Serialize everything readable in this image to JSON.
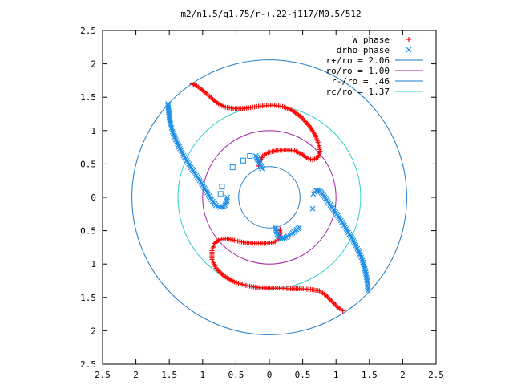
{
  "chart_data": {
    "type": "scatter",
    "title": "m2/n1.5/q1.75/r-+.22-j117/M0.5/512",
    "xlabel": "",
    "ylabel": "",
    "xlim": [
      -2.5,
      2.5
    ],
    "ylim": [
      -2.5,
      2.5
    ],
    "grid": false,
    "legend_position": "top-right",
    "x_ticks": [
      {
        "value": -2.5,
        "label": "2.5"
      },
      {
        "value": -2,
        "label": "2"
      },
      {
        "value": -1.5,
        "label": "1.5"
      },
      {
        "value": -1,
        "label": "1"
      },
      {
        "value": -0.5,
        "label": "0.5"
      },
      {
        "value": 0,
        "label": "0"
      },
      {
        "value": 0.5,
        "label": "0.5"
      },
      {
        "value": 1,
        "label": "1"
      },
      {
        "value": 1.5,
        "label": "1.5"
      },
      {
        "value": 2,
        "label": "2"
      },
      {
        "value": 2.5,
        "label": "2.5"
      }
    ],
    "y_ticks": [
      {
        "value": 2.5,
        "label": "2.5"
      },
      {
        "value": 2,
        "label": "2"
      },
      {
        "value": 1.5,
        "label": "1.5"
      },
      {
        "value": 1,
        "label": "1"
      },
      {
        "value": 0.5,
        "label": "0.5"
      },
      {
        "value": 0,
        "label": "0"
      },
      {
        "value": -0.5,
        "label": "0.5"
      },
      {
        "value": -1,
        "label": "1"
      },
      {
        "value": -1.5,
        "label": "1.5"
      },
      {
        "value": -2,
        "label": "2"
      },
      {
        "value": -2.5,
        "label": "2.5"
      }
    ],
    "circles": [
      {
        "name": "r+/ro = 2.06",
        "radius": 2.06,
        "color": "#1e7bc8"
      },
      {
        "name": "ro/ro = 1.00",
        "radius": 1.0,
        "color": "#a020a0"
      },
      {
        "name": "r-/ro = .46",
        "radius": 0.46,
        "color": "#1e7bc8"
      },
      {
        "name": "rc/ro = 1.37",
        "radius": 1.37,
        "color": "#30d0d0"
      }
    ],
    "series": [
      {
        "name": "W phase",
        "marker": "plus",
        "color": "#ff0000",
        "points": [
          [
            -1.16,
            1.7
          ],
          [
            -1.09,
            1.67
          ],
          [
            -1.02,
            1.62
          ],
          [
            -0.94,
            1.55
          ],
          [
            -0.85,
            1.47
          ],
          [
            -0.76,
            1.4
          ],
          [
            -0.66,
            1.35
          ],
          [
            -0.54,
            1.33
          ],
          [
            -0.4,
            1.33
          ],
          [
            -0.25,
            1.35
          ],
          [
            -0.1,
            1.37
          ],
          [
            0.05,
            1.38
          ],
          [
            0.2,
            1.36
          ],
          [
            0.35,
            1.3
          ],
          [
            0.48,
            1.2
          ],
          [
            0.6,
            1.07
          ],
          [
            0.69,
            0.93
          ],
          [
            0.74,
            0.8
          ],
          [
            0.76,
            0.69
          ],
          [
            0.73,
            0.6
          ],
          [
            0.65,
            0.56
          ],
          [
            0.56,
            0.59
          ],
          [
            0.48,
            0.65
          ],
          [
            0.38,
            0.7
          ],
          [
            0.25,
            0.71
          ],
          [
            0.1,
            0.7
          ],
          [
            -0.02,
            0.67
          ],
          [
            -0.1,
            0.62
          ],
          [
            -0.14,
            0.55
          ],
          [
            -0.16,
            0.47
          ],
          [
            1.1,
            -1.7
          ],
          [
            1.03,
            -1.65
          ],
          [
            0.95,
            -1.57
          ],
          [
            0.85,
            -1.47
          ],
          [
            0.75,
            -1.4
          ],
          [
            0.62,
            -1.38
          ],
          [
            0.48,
            -1.37
          ],
          [
            0.32,
            -1.37
          ],
          [
            0.15,
            -1.36
          ],
          [
            -0.02,
            -1.36
          ],
          [
            -0.18,
            -1.35
          ],
          [
            -0.35,
            -1.32
          ],
          [
            -0.52,
            -1.27
          ],
          [
            -0.68,
            -1.18
          ],
          [
            -0.8,
            -1.06
          ],
          [
            -0.86,
            -0.93
          ],
          [
            -0.86,
            -0.8
          ],
          [
            -0.82,
            -0.69
          ],
          [
            -0.74,
            -0.63
          ],
          [
            -0.63,
            -0.62
          ],
          [
            -0.5,
            -0.65
          ],
          [
            -0.36,
            -0.68
          ],
          [
            -0.22,
            -0.69
          ],
          [
            -0.08,
            -0.69
          ],
          [
            0.06,
            -0.68
          ],
          [
            0.14,
            -0.63
          ],
          [
            0.16,
            -0.55
          ],
          [
            0.16,
            -0.48
          ]
        ]
      },
      {
        "name": "drho phase",
        "marker": "x",
        "color": "#1e8fe8",
        "points": [
          [
            -1.52,
            1.4
          ],
          [
            -1.51,
            1.3
          ],
          [
            -1.5,
            1.2
          ],
          [
            -1.48,
            1.1
          ],
          [
            -1.45,
            0.98
          ],
          [
            -1.4,
            0.86
          ],
          [
            -1.34,
            0.73
          ],
          [
            -1.27,
            0.6
          ],
          [
            -1.19,
            0.47
          ],
          [
            -1.11,
            0.35
          ],
          [
            -1.03,
            0.23
          ],
          [
            -0.96,
            0.12
          ],
          [
            -0.9,
            0.02
          ],
          [
            -0.85,
            -0.06
          ],
          [
            -0.8,
            -0.12
          ],
          [
            -0.74,
            -0.15
          ],
          [
            -0.68,
            -0.14
          ],
          [
            -0.64,
            -0.08
          ],
          [
            -0.63,
            0.0
          ],
          [
            1.48,
            -1.4
          ],
          [
            1.47,
            -1.28
          ],
          [
            1.45,
            -1.15
          ],
          [
            1.42,
            -1.02
          ],
          [
            1.38,
            -0.9
          ],
          [
            1.32,
            -0.77
          ],
          [
            1.25,
            -0.63
          ],
          [
            1.17,
            -0.5
          ],
          [
            1.09,
            -0.37
          ],
          [
            1.01,
            -0.25
          ],
          [
            0.93,
            -0.14
          ],
          [
            0.86,
            -0.04
          ],
          [
            0.8,
            0.05
          ],
          [
            0.75,
            0.1
          ],
          [
            0.7,
            0.1
          ],
          [
            0.66,
            0.05
          ],
          [
            -0.2,
            0.62
          ],
          [
            -0.17,
            0.55
          ],
          [
            -0.13,
            0.48
          ],
          [
            -0.11,
            0.43
          ],
          [
            0.09,
            -0.45
          ],
          [
            0.11,
            -0.52
          ],
          [
            0.13,
            -0.58
          ],
          [
            0.17,
            -0.62
          ],
          [
            0.25,
            -0.6
          ],
          [
            0.33,
            -0.55
          ],
          [
            0.45,
            -0.45
          ],
          [
            0.65,
            -0.17
          ]
        ]
      },
      {
        "name": "",
        "marker": "square",
        "color": "#1e8fe8",
        "points": [
          [
            -0.29,
            0.62
          ],
          [
            -0.39,
            0.55
          ],
          [
            -0.55,
            0.45
          ],
          [
            -0.71,
            0.16
          ],
          [
            -0.73,
            0.05
          ]
        ]
      }
    ]
  }
}
